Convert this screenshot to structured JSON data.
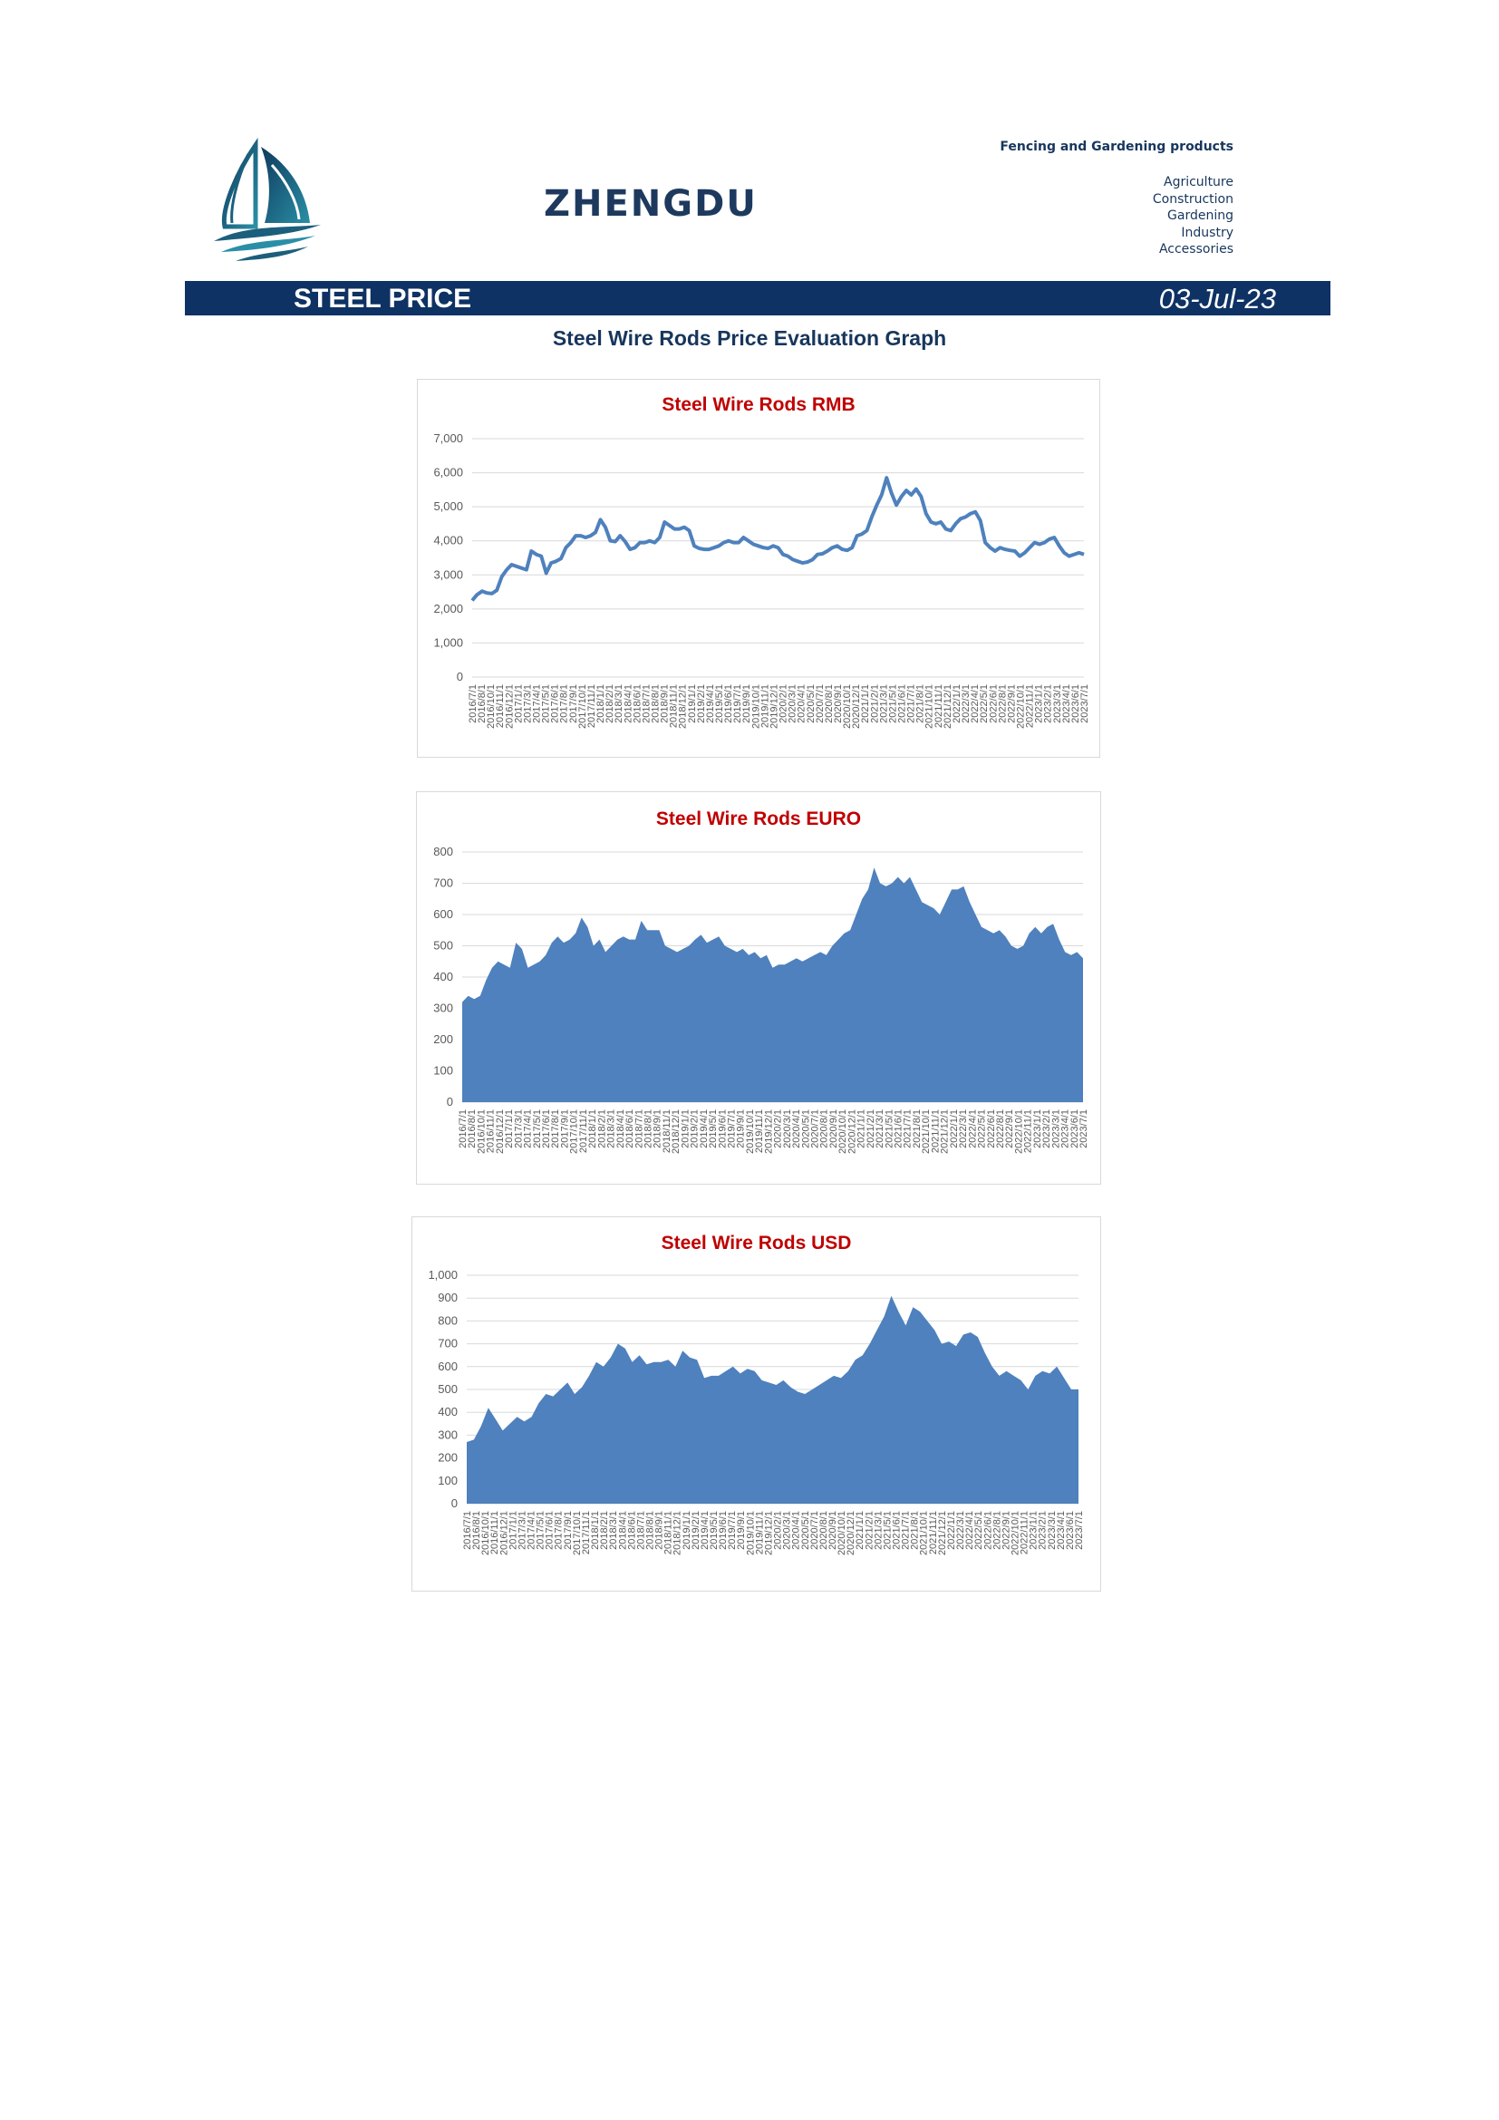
{
  "header": {
    "brand": "ZHENGDU",
    "tagline": "Fencing and Gardening products",
    "categories": [
      "Agriculture",
      "Construction",
      "Gardening",
      "Industry",
      "Accessories"
    ],
    "logo_icon": "sailboat-logo-icon",
    "accent_color": "#0e3263"
  },
  "banner": {
    "title": "STEEL PRICE",
    "date": "03-Jul-23"
  },
  "section_title": "Steel Wire Rods Price Evaluation Graph",
  "chart_data": [
    {
      "type": "line",
      "title": "Steel Wire Rods RMB",
      "color": "#4e81bd",
      "ylim": [
        0,
        7000
      ],
      "yticks": [
        0,
        1000,
        2000,
        3000,
        4000,
        5000,
        6000,
        7000
      ],
      "ytick_labels": [
        "0",
        "1,000",
        "2,000",
        "3,000",
        "4,000",
        "5,000",
        "6,000",
        "7,000"
      ],
      "x_start": "2016/7/1",
      "x_end": "2023/7/1",
      "xtick_labels": [
        "2016/7/1",
        "2016/8/1",
        "2016/10/1",
        "2016/11/1",
        "2016/12/1",
        "2017/1/1",
        "2017/3/1",
        "2017/4/1",
        "2017/5/1",
        "2017/6/1",
        "2017/8/1",
        "2017/9/1",
        "2017/10/1",
        "2017/11/1",
        "2018/1/1",
        "2018/2/1",
        "2018/3/1",
        "2018/4/1",
        "2018/6/1",
        "2018/7/1",
        "2018/8/1",
        "2018/9/1",
        "2018/11/1",
        "2018/12/1",
        "2019/1/1",
        "2019/2/1",
        "2019/4/1",
        "2019/5/1",
        "2019/6/1",
        "2019/7/1",
        "2019/9/1",
        "2019/10/1",
        "2019/11/1",
        "2019/12/1",
        "2020/2/1",
        "2020/3/1",
        "2020/4/1",
        "2020/5/1",
        "2020/7/1",
        "2020/8/1",
        "2020/9/1",
        "2020/10/1",
        "2020/12/1",
        "2021/1/1",
        "2021/2/1",
        "2021/3/1",
        "2021/5/1",
        "2021/6/1",
        "2021/7/1",
        "2021/8/1",
        "2021/10/1",
        "2021/11/1",
        "2021/12/1",
        "2022/1/1",
        "2022/3/1",
        "2022/4/1",
        "2022/5/1",
        "2022/6/1",
        "2022/8/1",
        "2022/9/1",
        "2022/10/1",
        "2022/11/1",
        "2023/1/1",
        "2023/2/1",
        "2023/3/1",
        "2023/4/1",
        "2023/6/1",
        "2023/7/1"
      ],
      "values": [
        2250,
        2420,
        2520,
        2470,
        2450,
        2550,
        2950,
        3150,
        3300,
        3250,
        3200,
        3150,
        3700,
        3600,
        3550,
        3050,
        3350,
        3400,
        3480,
        3800,
        3950,
        4150,
        4150,
        4100,
        4150,
        4250,
        4620,
        4400,
        4000,
        3980,
        4150,
        3980,
        3750,
        3800,
        3950,
        3950,
        4000,
        3950,
        4100,
        4550,
        4450,
        4350,
        4350,
        4400,
        4300,
        3850,
        3780,
        3750,
        3750,
        3800,
        3850,
        3950,
        4000,
        3950,
        3950,
        4100,
        4000,
        3900,
        3850,
        3800,
        3780,
        3850,
        3800,
        3600,
        3550,
        3450,
        3400,
        3350,
        3380,
        3450,
        3600,
        3620,
        3700,
        3800,
        3850,
        3750,
        3720,
        3800,
        4150,
        4200,
        4300,
        4700,
        5050,
        5350,
        5850,
        5400,
        5050,
        5300,
        5480,
        5350,
        5520,
        5300,
        4800,
        4550,
        4500,
        4550,
        4350,
        4300,
        4500,
        4650,
        4700,
        4800,
        4850,
        4600,
        3950,
        3800,
        3700,
        3800,
        3750,
        3720,
        3700,
        3550,
        3650,
        3800,
        3950,
        3900,
        3950,
        4050,
        4100,
        3850,
        3650,
        3550,
        3600,
        3650,
        3600
      ]
    },
    {
      "type": "area",
      "title": "Steel Wire Rods EURO",
      "color": "#4e81bd",
      "ylim": [
        0,
        800
      ],
      "yticks": [
        0,
        100,
        200,
        300,
        400,
        500,
        600,
        700,
        800
      ],
      "ytick_labels": [
        "0",
        "100",
        "200",
        "300",
        "400",
        "500",
        "600",
        "700",
        "800"
      ],
      "x_start": "2016/7/1",
      "x_end": "2023/7/1",
      "xtick_labels": [
        "2016/7/1",
        "2016/8/1",
        "2016/10/1",
        "2016/11/1",
        "2016/12/1",
        "2017/1/1",
        "2017/3/1",
        "2017/4/1",
        "2017/5/1",
        "2017/6/1",
        "2017/8/1",
        "2017/9/1",
        "2017/10/1",
        "2017/11/1",
        "2018/1/1",
        "2018/2/1",
        "2018/3/1",
        "2018/4/1",
        "2018/6/1",
        "2018/7/1",
        "2018/8/1",
        "2018/9/1",
        "2018/11/1",
        "2018/12/1",
        "2019/1/1",
        "2019/2/1",
        "2019/4/1",
        "2019/5/1",
        "2019/6/1",
        "2019/7/1",
        "2019/9/1",
        "2019/10/1",
        "2019/11/1",
        "2019/12/1",
        "2020/2/1",
        "2020/3/1",
        "2020/4/1",
        "2020/5/1",
        "2020/7/1",
        "2020/8/1",
        "2020/9/1",
        "2020/10/1",
        "2020/12/1",
        "2021/1/1",
        "2021/2/1",
        "2021/3/1",
        "2021/5/1",
        "2021/6/1",
        "2021/7/1",
        "2021/8/1",
        "2021/10/1",
        "2021/11/1",
        "2021/12/1",
        "2022/1/1",
        "2022/3/1",
        "2022/4/1",
        "2022/5/1",
        "2022/6/1",
        "2022/8/1",
        "2022/9/1",
        "2022/10/1",
        "2022/11/1",
        "2023/1/1",
        "2023/2/1",
        "2023/3/1",
        "2023/4/1",
        "2023/6/1",
        "2023/7/1"
      ],
      "values": [
        320,
        340,
        330,
        340,
        390,
        430,
        450,
        440,
        430,
        510,
        490,
        430,
        440,
        450,
        470,
        510,
        530,
        510,
        520,
        540,
        590,
        560,
        500,
        520,
        480,
        500,
        520,
        530,
        520,
        520,
        580,
        550,
        550,
        550,
        500,
        490,
        480,
        490,
        500,
        520,
        535,
        510,
        520,
        530,
        500,
        490,
        480,
        490,
        470,
        480,
        460,
        470,
        430,
        440,
        440,
        450,
        460,
        450,
        460,
        470,
        480,
        470,
        500,
        520,
        540,
        550,
        600,
        650,
        680,
        750,
        700,
        690,
        700,
        720,
        700,
        720,
        680,
        640,
        630,
        620,
        600,
        640,
        680,
        680,
        690,
        640,
        600,
        560,
        550,
        540,
        550,
        530,
        500,
        490,
        500,
        540,
        560,
        540,
        560,
        570,
        520,
        480,
        470,
        480,
        460
      ]
    },
    {
      "type": "area",
      "title": "Steel Wire Rods USD",
      "color": "#4e81bd",
      "ylim": [
        0,
        1000
      ],
      "yticks": [
        0,
        100,
        200,
        300,
        400,
        500,
        600,
        700,
        800,
        900,
        1000
      ],
      "ytick_labels": [
        "0",
        "100",
        "200",
        "300",
        "400",
        "500",
        "600",
        "700",
        "800",
        "900",
        "1,000"
      ],
      "x_start": "2016/7/1",
      "x_end": "2023/7/1",
      "xtick_labels": [
        "2016/7/1",
        "2016/8/1",
        "2016/10/1",
        "2016/11/1",
        "2016/12/1",
        "2017/1/1",
        "2017/3/1",
        "2017/4/1",
        "2017/5/1",
        "2017/6/1",
        "2017/8/1",
        "2017/9/1",
        "2017/10/1",
        "2017/11/1",
        "2018/1/1",
        "2018/2/1",
        "2018/3/1",
        "2018/4/1",
        "2018/6/1",
        "2018/7/1",
        "2018/8/1",
        "2018/9/1",
        "2018/11/1",
        "2018/12/1",
        "2019/1/1",
        "2019/2/1",
        "2019/4/1",
        "2019/5/1",
        "2019/6/1",
        "2019/7/1",
        "2019/9/1",
        "2019/10/1",
        "2019/11/1",
        "2019/12/1",
        "2020/2/1",
        "2020/3/1",
        "2020/4/1",
        "2020/5/1",
        "2020/7/1",
        "2020/8/1",
        "2020/9/1",
        "2020/10/1",
        "2020/12/1",
        "2021/1/1",
        "2021/2/1",
        "2021/3/1",
        "2021/5/1",
        "2021/6/1",
        "2021/7/1",
        "2021/8/1",
        "2021/10/1",
        "2021/11/1",
        "2021/12/1",
        "2022/1/1",
        "2022/3/1",
        "2022/4/1",
        "2022/5/1",
        "2022/6/1",
        "2022/8/1",
        "2022/9/1",
        "2022/10/1",
        "2022/11/1",
        "2023/1/1",
        "2023/2/1",
        "2023/3/1",
        "2023/4/1",
        "2023/6/1",
        "2023/7/1"
      ],
      "values": [
        270,
        280,
        340,
        420,
        370,
        320,
        350,
        380,
        360,
        380,
        440,
        480,
        470,
        500,
        530,
        480,
        510,
        560,
        620,
        600,
        640,
        700,
        680,
        620,
        650,
        610,
        620,
        620,
        630,
        600,
        670,
        640,
        630,
        550,
        560,
        560,
        580,
        600,
        570,
        590,
        580,
        540,
        530,
        520,
        540,
        510,
        490,
        480,
        500,
        520,
        540,
        560,
        550,
        580,
        630,
        650,
        700,
        760,
        820,
        910,
        840,
        780,
        860,
        840,
        800,
        760,
        700,
        710,
        690,
        740,
        750,
        730,
        660,
        600,
        560,
        580,
        560,
        540,
        500,
        560,
        580,
        570,
        600,
        550,
        500,
        500
      ]
    }
  ]
}
